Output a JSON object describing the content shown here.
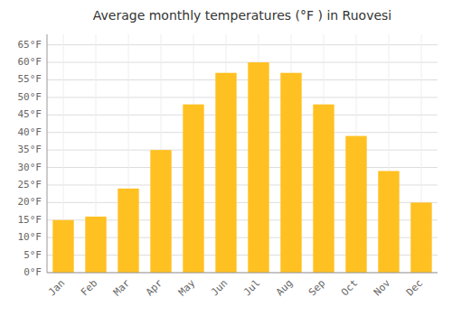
{
  "chart_data": {
    "type": "bar",
    "title": "Average monthly temperatures (°F ) in Ruovesi",
    "categories": [
      "Jan",
      "Feb",
      "Mar",
      "Apr",
      "May",
      "Jun",
      "Jul",
      "Aug",
      "Sep",
      "Oct",
      "Nov",
      "Dec"
    ],
    "values": [
      15,
      16,
      24,
      35,
      48,
      57,
      60,
      57,
      48,
      39,
      29,
      20
    ],
    "color": "#FFC021",
    "ylim": [
      0,
      68
    ],
    "yticks": [
      {
        "value": 0,
        "label": "0°F"
      },
      {
        "value": 5,
        "label": "5°F"
      },
      {
        "value": 10,
        "label": "10°F"
      },
      {
        "value": 15,
        "label": "15°F"
      },
      {
        "value": 20,
        "label": "20°F"
      },
      {
        "value": 25,
        "label": "25°F"
      },
      {
        "value": 30,
        "label": "30°F"
      },
      {
        "value": 35,
        "label": "35°F"
      },
      {
        "value": 40,
        "label": "40°F"
      },
      {
        "value": 45,
        "label": "45°F"
      },
      {
        "value": 50,
        "label": "50°F"
      },
      {
        "value": 55,
        "label": "55°F"
      },
      {
        "value": 60,
        "label": "60°F"
      },
      {
        "value": 65,
        "label": "65°F"
      }
    ],
    "grid": true
  }
}
